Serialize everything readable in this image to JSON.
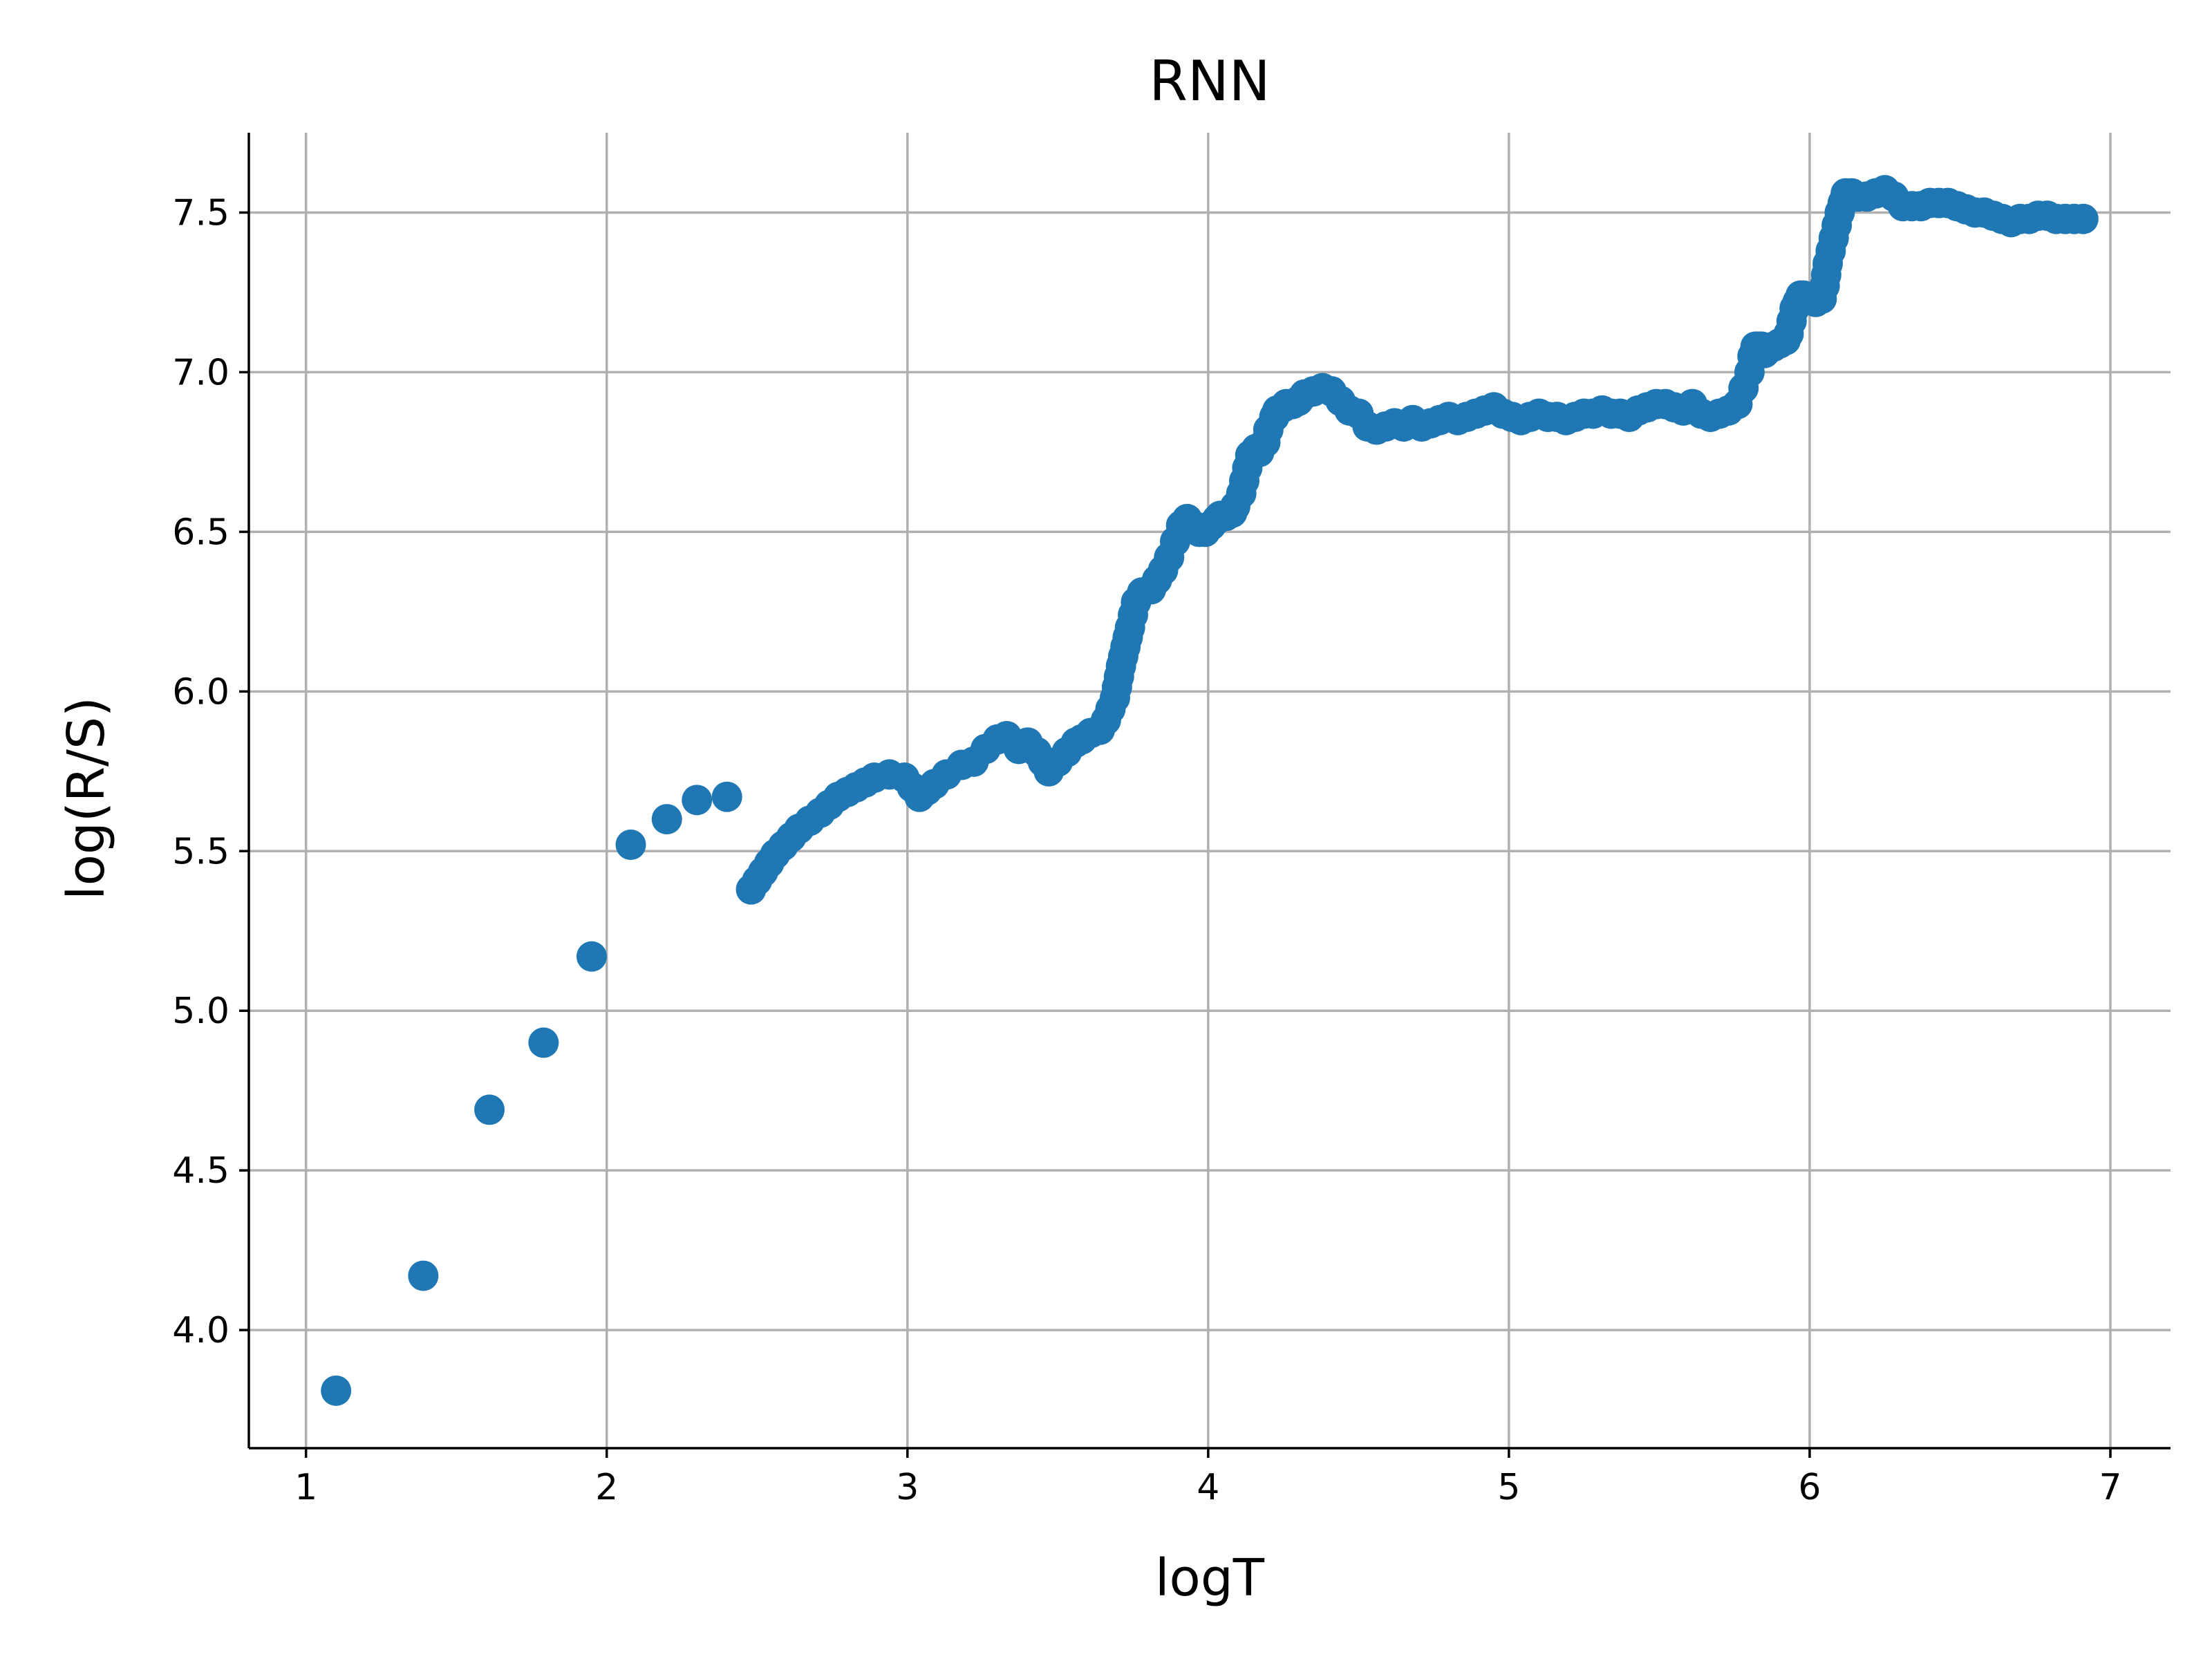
{
  "chart_data": {
    "type": "scatter",
    "title": "RNN",
    "xlabel": "logT",
    "ylabel": "log(R/S)",
    "xlim": [
      0.81,
      7.2
    ],
    "ylim": [
      3.63,
      7.75
    ],
    "xticks": [
      1,
      2,
      3,
      4,
      5,
      6,
      7
    ],
    "xtick_labels": [
      "1",
      "2",
      "3",
      "4",
      "5",
      "6",
      "7"
    ],
    "yticks": [
      4.0,
      4.5,
      5.0,
      5.5,
      6.0,
      6.5,
      7.0,
      7.5
    ],
    "ytick_labels": [
      "4.0",
      "4.5",
      "5.0",
      "5.5",
      "6.0",
      "6.5",
      "7.0",
      "7.5"
    ],
    "grid": true,
    "marker_color": "#1f77b4",
    "x": [
      1.1,
      1.39,
      1.61,
      1.79,
      1.95,
      2.08,
      2.2,
      2.3,
      2.4,
      2.48,
      2.56,
      2.64,
      2.71,
      2.77,
      2.83,
      2.89,
      2.94,
      2.99,
      3.04,
      3.09,
      3.13,
      3.18,
      3.22,
      3.26,
      3.3,
      3.33,
      3.37,
      3.4,
      3.43,
      3.47,
      3.5,
      3.53,
      3.56,
      3.58,
      3.61,
      3.64,
      3.66,
      3.69,
      3.71,
      3.74,
      3.76,
      3.78,
      3.81,
      3.83,
      3.85,
      3.87,
      3.89,
      3.91,
      3.93,
      3.95,
      3.97,
      3.99,
      4.01,
      4.03,
      4.04,
      4.06,
      4.08,
      4.09,
      4.11,
      4.13,
      4.14,
      4.16,
      4.17,
      4.19,
      4.2,
      4.22,
      4.23,
      4.25,
      4.26,
      4.28,
      4.3,
      4.32,
      4.35,
      4.38,
      4.41,
      4.44,
      4.47,
      4.5,
      4.53,
      4.56,
      4.59,
      4.62,
      4.65,
      4.68,
      4.71,
      4.74,
      4.77,
      4.8,
      4.83,
      4.86,
      4.89,
      4.92,
      4.95,
      4.98,
      5.01,
      5.04,
      5.07,
      5.1,
      5.13,
      5.16,
      5.19,
      5.22,
      5.25,
      5.28,
      5.31,
      5.34,
      5.37,
      5.4,
      5.43,
      5.46,
      5.49,
      5.52,
      5.55,
      5.58,
      5.61,
      5.64,
      5.67,
      5.7,
      5.73,
      5.76,
      5.78,
      5.8,
      5.81,
      5.82,
      5.83,
      5.84,
      5.85,
      5.86,
      5.88,
      5.9,
      5.92,
      5.93,
      5.94,
      5.95,
      5.96,
      5.97,
      5.98,
      6.0,
      6.02,
      6.04,
      6.05,
      6.06,
      6.07,
      6.08,
      6.09,
      6.1,
      6.11,
      6.12,
      6.14,
      6.16,
      6.19,
      6.22,
      6.25,
      6.28,
      6.31,
      6.34,
      6.37,
      6.4,
      6.43,
      6.46,
      6.49,
      6.52,
      6.55,
      6.58,
      6.61,
      6.64,
      6.67,
      6.7,
      6.73,
      6.76,
      6.79,
      6.82,
      6.85,
      6.88,
      6.91
    ],
    "y": [
      3.81,
      4.17,
      4.69,
      4.9,
      5.17,
      5.52,
      5.6,
      5.66,
      5.67,
      5.38,
      5.49,
      5.57,
      5.62,
      5.67,
      5.7,
      5.73,
      5.74,
      5.73,
      5.67,
      5.71,
      5.74,
      5.77,
      5.78,
      5.82,
      5.85,
      5.86,
      5.82,
      5.84,
      5.81,
      5.75,
      5.78,
      5.81,
      5.84,
      5.85,
      5.87,
      5.88,
      5.91,
      5.98,
      6.08,
      6.2,
      6.28,
      6.31,
      6.32,
      6.35,
      6.38,
      6.42,
      6.47,
      6.52,
      6.54,
      6.52,
      6.5,
      6.5,
      6.52,
      6.54,
      6.55,
      6.55,
      6.56,
      6.58,
      6.62,
      6.7,
      6.74,
      6.76,
      6.75,
      6.78,
      6.82,
      6.86,
      6.88,
      6.89,
      6.9,
      6.9,
      6.91,
      6.93,
      6.94,
      6.95,
      6.94,
      6.91,
      6.88,
      6.87,
      6.83,
      6.82,
      6.83,
      6.84,
      6.83,
      6.85,
      6.83,
      6.84,
      6.85,
      6.86,
      6.85,
      6.86,
      6.87,
      6.88,
      6.89,
      6.87,
      6.86,
      6.85,
      6.86,
      6.87,
      6.86,
      6.86,
      6.85,
      6.86,
      6.87,
      6.87,
      6.88,
      6.87,
      6.87,
      6.86,
      6.88,
      6.89,
      6.9,
      6.9,
      6.89,
      6.88,
      6.9,
      6.87,
      6.86,
      6.87,
      6.88,
      6.9,
      6.95,
      7.0,
      7.05,
      7.08,
      7.08,
      7.08,
      7.06,
      7.07,
      7.08,
      7.09,
      7.1,
      7.12,
      7.16,
      7.2,
      7.22,
      7.24,
      7.24,
      7.23,
      7.22,
      7.23,
      7.27,
      7.34,
      7.38,
      7.42,
      7.46,
      7.5,
      7.53,
      7.56,
      7.56,
      7.55,
      7.55,
      7.56,
      7.57,
      7.55,
      7.52,
      7.52,
      7.52,
      7.53,
      7.53,
      7.53,
      7.52,
      7.51,
      7.5,
      7.5,
      7.49,
      7.48,
      7.47,
      7.48,
      7.48,
      7.49,
      7.49,
      7.48,
      7.48,
      7.48,
      7.48
    ]
  }
}
